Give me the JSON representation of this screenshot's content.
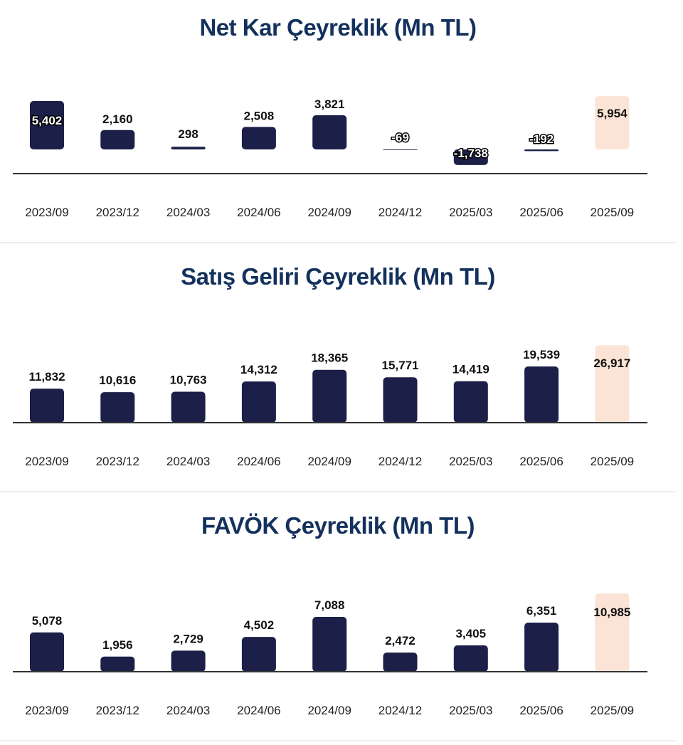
{
  "colors": {
    "bar": "#1c2048",
    "highlight_bar": "#fbe4d5",
    "axis": "#333333",
    "title": "#13315c"
  },
  "chart_data": [
    {
      "type": "bar",
      "title": "Net Kar Çeyreklik (Mn TL)",
      "categories": [
        "2023/09",
        "2023/12",
        "2024/03",
        "2024/06",
        "2024/09",
        "2024/12",
        "2025/03",
        "2025/06",
        "2025/09"
      ],
      "values": [
        5402,
        2160,
        298,
        2508,
        3821,
        -69,
        -1738,
        -192,
        5954
      ],
      "labels": [
        "5,402",
        "2,160",
        "298",
        "2,508",
        "3,821",
        "-69",
        "-1,738",
        "-192",
        "5,954"
      ],
      "highlight_index": 8,
      "grid": false
    },
    {
      "type": "bar",
      "title": "Satış Geliri Çeyreklik (Mn TL)",
      "categories": [
        "2023/09",
        "2023/12",
        "2024/03",
        "2024/06",
        "2024/09",
        "2024/12",
        "2025/03",
        "2025/06",
        "2025/09"
      ],
      "values": [
        11832,
        10616,
        10763,
        14312,
        18365,
        15771,
        14419,
        19539,
        26917
      ],
      "labels": [
        "11,832",
        "10,616",
        "10,763",
        "14,312",
        "18,365",
        "15,771",
        "14,419",
        "19,539",
        "26,917"
      ],
      "highlight_index": 8,
      "grid": false
    },
    {
      "type": "bar",
      "title": "FAVÖK Çeyreklik (Mn TL)",
      "categories": [
        "2023/09",
        "2023/12",
        "2024/03",
        "2024/06",
        "2024/09",
        "2024/12",
        "2025/03",
        "2025/06",
        "2025/09"
      ],
      "values": [
        5078,
        1956,
        2729,
        4502,
        7088,
        2472,
        3405,
        6351,
        10985
      ],
      "labels": [
        "5,078",
        "1,956",
        "2,729",
        "4,502",
        "7,088",
        "2,472",
        "3,405",
        "6,351",
        "10,985"
      ],
      "highlight_index": 8,
      "grid": false
    }
  ]
}
